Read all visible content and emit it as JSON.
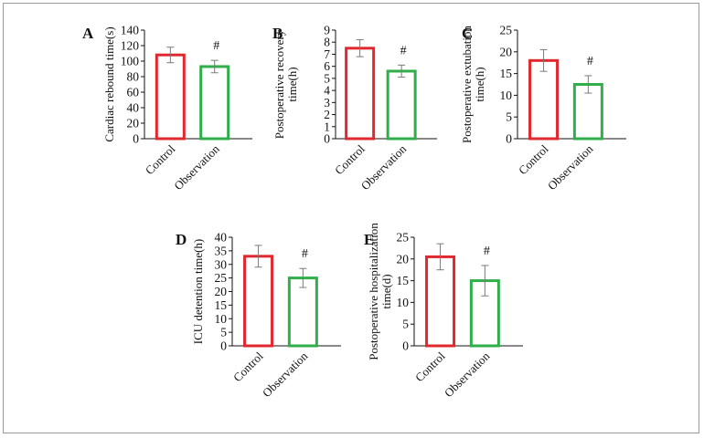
{
  "figure": {
    "description_none": ""
  },
  "colors": {
    "control": "#e0282e",
    "observation": "#2fae4a",
    "axis": "#111111",
    "error": "#7a7a7a"
  },
  "chart_data": [
    {
      "type": "bar",
      "panel": "A",
      "categories": [
        "Control",
        "Observation"
      ],
      "values": [
        108,
        93
      ],
      "errors": [
        10,
        8
      ],
      "ylabel_lines": [
        "Cardiac rebound time(s)"
      ],
      "ylim": [
        0,
        140
      ],
      "yticks": [
        0,
        20,
        40,
        60,
        80,
        100,
        120,
        140
      ],
      "significance": "#"
    },
    {
      "type": "bar",
      "panel": "B",
      "categories": [
        "Control",
        "Observation"
      ],
      "values": [
        7.5,
        5.6
      ],
      "errors": [
        0.7,
        0.5
      ],
      "ylabel_lines": [
        "Postoperative recovery",
        "time(h)"
      ],
      "ylim": [
        0,
        9
      ],
      "yticks": [
        0,
        1,
        2,
        3,
        4,
        5,
        6,
        7,
        8,
        9
      ],
      "significance": "#"
    },
    {
      "type": "bar",
      "panel": "C",
      "categories": [
        "Control",
        "Observation"
      ],
      "values": [
        18,
        12.5
      ],
      "errors": [
        2.5,
        2
      ],
      "ylabel_lines": [
        "Postoperative extubation",
        "time(h)"
      ],
      "ylim": [
        0,
        25
      ],
      "yticks": [
        0,
        5,
        10,
        15,
        20,
        25
      ],
      "significance": "#"
    },
    {
      "type": "bar",
      "panel": "D",
      "categories": [
        "Control",
        "Observation"
      ],
      "values": [
        33,
        25
      ],
      "errors": [
        4,
        3.5
      ],
      "ylabel_lines": [
        "ICU detention time(h)"
      ],
      "ylim": [
        0,
        40
      ],
      "yticks": [
        0,
        5,
        10,
        15,
        20,
        25,
        30,
        35,
        40
      ],
      "significance": "#"
    },
    {
      "type": "bar",
      "panel": "E",
      "categories": [
        "Control",
        "Observation"
      ],
      "values": [
        20.5,
        15
      ],
      "errors": [
        3,
        3.5
      ],
      "ylabel_lines": [
        "Postoperative hospitalization",
        "time(d)"
      ],
      "ylim": [
        0,
        25
      ],
      "yticks": [
        0,
        5,
        10,
        15,
        20,
        25
      ],
      "significance": "#"
    }
  ]
}
